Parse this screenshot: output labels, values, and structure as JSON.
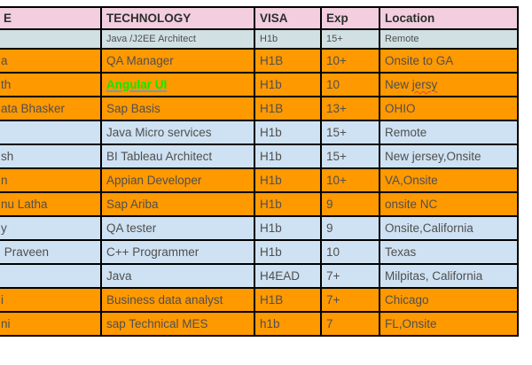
{
  "sheet": {
    "title": "job-hotlist-spreadsheet",
    "columns": [
      {
        "key": "name",
        "label": "E"
      },
      {
        "key": "technology",
        "label": "TECHNOLOGY"
      },
      {
        "key": "visa",
        "label": "VISA"
      },
      {
        "key": "exp",
        "label": "Exp"
      },
      {
        "key": "location",
        "label": "Location"
      }
    ],
    "rows": [
      {
        "color": "cyan",
        "small_font": true,
        "name": "",
        "technology": "Java /J2EE Architect",
        "visa": "H1b",
        "exp": "15+",
        "location": "Remote"
      },
      {
        "color": "orange",
        "small_font": false,
        "name": "a",
        "technology": "QA Manager",
        "visa": "H1B",
        "exp": "10+",
        "location": "Onsite to GA"
      },
      {
        "color": "orange",
        "small_font": false,
        "name": "th",
        "technology": "Angular UI",
        "technology_is_link": true,
        "visa": "H1b",
        "exp": "10",
        "location": "New jersy",
        "location_misspelled_word": "jersy"
      },
      {
        "color": "orange",
        "small_font": false,
        "name": "ata Bhasker",
        "technology": "Sap Basis",
        "visa": "H1B",
        "exp": "13+",
        "location": "OHIO"
      },
      {
        "color": "blue",
        "small_font": false,
        "name": "",
        "technology": "Java Micro services",
        "visa": "H1b",
        "exp": "15+",
        "location": "Remote"
      },
      {
        "color": "blue",
        "small_font": false,
        "name": "sh",
        "technology": "BI Tableau Architect",
        "visa": "H1b",
        "exp": "15+",
        "location": "New jersey,Onsite"
      },
      {
        "color": "orange",
        "small_font": false,
        "name": "n",
        "technology": "Appian Developer",
        "visa": "H1b",
        "exp": "10+",
        "location": "VA,Onsite"
      },
      {
        "color": "orange",
        "small_font": false,
        "name": "nu Latha",
        "technology": "Sap Ariba",
        "visa": "H1b",
        "exp": "9",
        "location": "onsite NC"
      },
      {
        "color": "blue",
        "small_font": false,
        "name": "y",
        "technology": "QA tester",
        "visa": "H1b",
        "exp": "9",
        "location": "Onsite,California"
      },
      {
        "color": "blue",
        "small_font": false,
        "name": " Praveen",
        "technology": "C++ Programmer",
        "visa": "H1b",
        "exp": "10",
        "location": "Texas"
      },
      {
        "color": "blue",
        "small_font": false,
        "name": "",
        "technology": "Java",
        "visa": "H4EAD",
        "exp": "7+",
        "location": "Milpitas, California"
      },
      {
        "color": "orange",
        "small_font": false,
        "name": "i",
        "technology": "Business data analyst",
        "visa": "H1B",
        "exp": "7+",
        "location": "Chicago"
      },
      {
        "color": "orange",
        "small_font": false,
        "name": "ni",
        "technology": "sap Technical MES",
        "visa": "h1b",
        "exp": "7",
        "location": "FL,Onsite"
      }
    ]
  },
  "colors": {
    "header_bg": "#f2cede",
    "row_cyan_bg": "#d0e0e3",
    "row_blue_bg": "#cfe2f3",
    "row_orange_bg": "#ff9900",
    "grid_line": "#000000",
    "link_green": "#00ee00",
    "link_underline": "#7d99ac",
    "squiggle_red": "#e8442e",
    "header_text": "#2d2d2d",
    "cell_text": "#4f4f4f"
  }
}
